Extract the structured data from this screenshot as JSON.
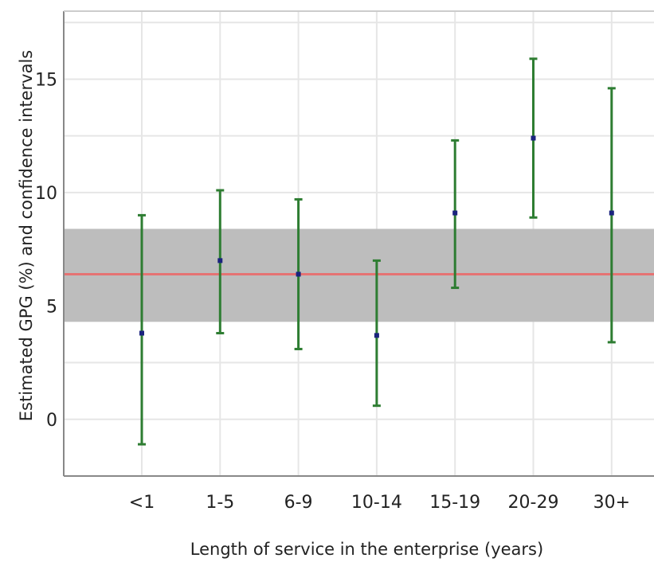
{
  "chart_data": {
    "type": "errorbar",
    "xlabel": "Length of service in the enterprise (years)",
    "ylabel": "Estimated GPG (%) and confidence intervals",
    "categories": [
      "<1",
      "1-5",
      "6-9",
      "10-14",
      "15-19",
      "20-29",
      "30+"
    ],
    "estimates": [
      3.8,
      7.0,
      6.4,
      3.7,
      9.1,
      12.4,
      9.1
    ],
    "ci_lower": [
      -1.1,
      3.8,
      3.1,
      0.6,
      5.8,
      8.9,
      3.4
    ],
    "ci_upper": [
      9.0,
      10.1,
      9.7,
      7.0,
      12.3,
      15.9,
      14.6
    ],
    "reference_line": 6.4,
    "reference_band": [
      4.3,
      8.4
    ],
    "ylim": [
      -2.5,
      18
    ],
    "yticks": [
      0,
      5,
      10,
      15
    ],
    "grid": true,
    "colors": {
      "errorbar": "#2e7d32",
      "point": "#1a237e",
      "reference_line": "#e57373",
      "band": "#bdbdbd",
      "grid": "#e6e6e6",
      "axis": "#888888"
    }
  }
}
